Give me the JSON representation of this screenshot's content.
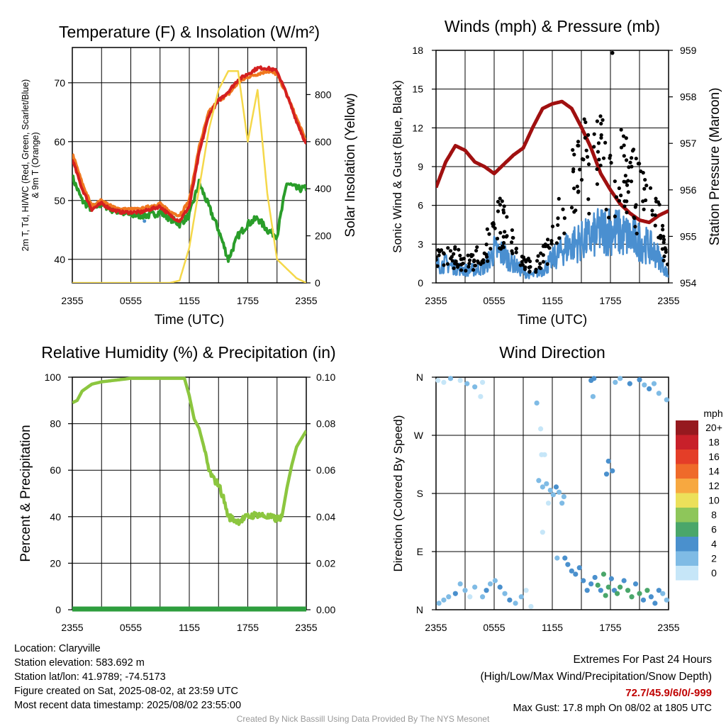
{
  "chart_data": [
    {
      "type": "line",
      "title": "Temperature (F) & Insolation (W/m²)",
      "xlabel": "Time (UTC)",
      "ylabel": "2m T, Td, HI/WC (Red, Green, Scarlet/Blue) & 9m T (Orange)",
      "y2label": "Solar Insolation (Yellow)",
      "x_ticks": [
        "2355",
        "0555",
        "1155",
        "1755",
        "2355"
      ],
      "y_ticks": [
        "40",
        "50",
        "60",
        "70"
      ],
      "y2_ticks": [
        "0",
        "200",
        "400",
        "600",
        "800"
      ],
      "ylim": [
        36,
        76
      ],
      "y2lim": [
        0,
        1000
      ],
      "grid": true,
      "x_hours": [
        0,
        1,
        2,
        3,
        4,
        5,
        6,
        7,
        8,
        9,
        10,
        11,
        12,
        13,
        14,
        15,
        16,
        17,
        18,
        19,
        20,
        21,
        22,
        23,
        24
      ],
      "series": [
        {
          "color": "#2a9d2a",
          "axis": "left",
          "values": [
            54,
            50,
            48.5,
            49.5,
            48.5,
            48,
            47.5,
            47.5,
            47.5,
            48,
            47,
            46,
            47.5,
            53,
            49,
            45,
            40,
            44,
            46,
            47,
            45,
            44,
            53,
            52,
            52
          ]
        },
        {
          "color": "#f07820",
          "axis": "left",
          "values": [
            58,
            53,
            49,
            50,
            49,
            48.5,
            48.5,
            48.5,
            49,
            49.5,
            48,
            47.5,
            50,
            59,
            65,
            67,
            68,
            70,
            71,
            71.5,
            72,
            71.5,
            68,
            64,
            60
          ]
        },
        {
          "color": "#d42020",
          "axis": "left",
          "values": [
            57,
            52,
            48.5,
            49.5,
            48.5,
            48,
            48,
            48,
            48.5,
            49,
            47.5,
            46.5,
            49,
            58,
            64.5,
            67,
            68.5,
            70.5,
            71.5,
            72.5,
            72.5,
            72,
            68,
            63.5,
            59.5
          ]
        },
        {
          "color": "#f5d84a",
          "axis": "right",
          "values": [
            0,
            0,
            0,
            0,
            0,
            0,
            0,
            0,
            0,
            0,
            0,
            10,
            150,
            400,
            650,
            820,
            900,
            900,
            600,
            820,
            380,
            100,
            60,
            20,
            0
          ]
        }
      ],
      "blue_points": [
        [
          7.4,
          46.5
        ]
      ]
    },
    {
      "type": "line",
      "title": "Winds (mph) & Pressure (mb)",
      "xlabel": "Time (UTC)",
      "ylabel": "Sonic Wind & Gust (Blue, Black)",
      "y2label": "Station Pressure (Maroon)",
      "x_ticks": [
        "2355",
        "0555",
        "1155",
        "1755",
        "2355"
      ],
      "y_ticks": [
        "0",
        "3",
        "6",
        "9",
        "12",
        "15",
        "18"
      ],
      "y2_ticks": [
        "954",
        "955",
        "956",
        "957",
        "958",
        "959"
      ],
      "ylim": [
        0,
        18
      ],
      "y2lim": [
        954,
        959
      ],
      "grid": true,
      "pressure": {
        "color": "#a01010",
        "x_hours": [
          0,
          1,
          2,
          3,
          4,
          5,
          6,
          7,
          8,
          9,
          10,
          11,
          12,
          13,
          14,
          15,
          16,
          17,
          18,
          19,
          20,
          21,
          22,
          23,
          24
        ],
        "values": [
          956.05,
          956.6,
          956.95,
          956.85,
          956.6,
          956.5,
          956.35,
          956.55,
          956.75,
          956.9,
          957.35,
          957.75,
          957.85,
          957.9,
          957.75,
          957.35,
          956.9,
          956.35,
          956.0,
          955.7,
          955.5,
          955.35,
          955.3,
          955.45,
          955.55
        ]
      },
      "wind_mean": {
        "color": "#4a8fd0",
        "x_hours": [
          0,
          1,
          2,
          3,
          4,
          5,
          6,
          7,
          8,
          9,
          10,
          11,
          12,
          13,
          14,
          15,
          16,
          17,
          18,
          19,
          20,
          21,
          22,
          23,
          24
        ],
        "values": [
          1.3,
          1.5,
          1.2,
          1.0,
          1.0,
          1.2,
          2.5,
          2.2,
          1.5,
          0.8,
          0.6,
          1.0,
          1.8,
          2.5,
          3.0,
          3.2,
          3.5,
          4.0,
          4.2,
          3.8,
          3.5,
          3.2,
          2.8,
          2.0,
          0.5
        ]
      },
      "gusts": {
        "color": "#000000",
        "x_hours": [
          0,
          1,
          2,
          3,
          4,
          5,
          6,
          7,
          8,
          9,
          10,
          11,
          12,
          13,
          14,
          15,
          16,
          17,
          18,
          19,
          20,
          21,
          22,
          23,
          24
        ],
        "values": [
          1.8,
          2.2,
          2.0,
          1.5,
          1.8,
          2.5,
          4.0,
          5.0,
          3.0,
          1.5,
          1.2,
          2.0,
          3.0,
          5.5,
          7.5,
          8.5,
          9.5,
          9.0,
          8.0,
          8.5,
          8.0,
          6.5,
          6.0,
          4.5,
          0.8
        ],
        "max": {
          "x_hours": 18.2,
          "value": 17.8
        }
      }
    },
    {
      "type": "line",
      "title": "Relative Humidity (%) & Precipitation (in)",
      "xlabel": "",
      "ylabel": "Percent & Precipitation",
      "x_ticks": [
        "2355",
        "0555",
        "1155",
        "1755",
        "2355"
      ],
      "y_ticks": [
        "0",
        "20",
        "40",
        "60",
        "80",
        "100"
      ],
      "y2_ticks": [
        "0.00",
        "0.02",
        "0.04",
        "0.06",
        "0.08",
        "0.10"
      ],
      "ylim": [
        0,
        100
      ],
      "y2lim": [
        0,
        0.1
      ],
      "grid": true,
      "series": [
        {
          "color": "#8cc63f",
          "axis": "left",
          "x_hours": [
            0,
            0.5,
            1,
            2,
            3,
            4,
            5,
            6,
            7,
            8,
            9,
            10,
            11,
            11.5,
            12,
            12.5,
            13,
            13.5,
            14,
            14.5,
            15,
            15.5,
            16,
            17,
            18,
            19,
            20,
            21,
            21.5,
            22,
            22.5,
            23,
            24
          ],
          "values": [
            89,
            90,
            94,
            97,
            98,
            98.5,
            99,
            99.5,
            99.5,
            99.5,
            99.5,
            99.5,
            99.5,
            99.5,
            92,
            82,
            78,
            70,
            60,
            56,
            54,
            48,
            40,
            38,
            40,
            41,
            40,
            39,
            40,
            52,
            62,
            70,
            77
          ]
        },
        {
          "color": "#2e9e3e",
          "axis": "right",
          "x_hours": [
            0,
            24
          ],
          "values": [
            0,
            0
          ]
        }
      ]
    },
    {
      "type": "scatter",
      "title": "Wind Direction",
      "ylabel": "Direction (Colored By Speed)",
      "x_ticks": [
        "2355",
        "0555",
        "1155",
        "1755",
        "2355"
      ],
      "y_ticks": [
        "N",
        "E",
        "S",
        "W",
        "N"
      ],
      "ylim": [
        0,
        360
      ],
      "grid": true,
      "points": [
        [
          0.2,
          355,
          1
        ],
        [
          0.8,
          352,
          1
        ],
        [
          1.5,
          358,
          2
        ],
        [
          2.5,
          355,
          1
        ],
        [
          3.2,
          350,
          2
        ],
        [
          4.0,
          345,
          2
        ],
        [
          4.8,
          352,
          1
        ],
        [
          4.6,
          330,
          1
        ],
        [
          0.3,
          10,
          3
        ],
        [
          0.8,
          15,
          2
        ],
        [
          1.3,
          20,
          2
        ],
        [
          2.0,
          25,
          4
        ],
        [
          2.5,
          40,
          3
        ],
        [
          3.0,
          30,
          2
        ],
        [
          3.5,
          20,
          1
        ],
        [
          4.0,
          35,
          3
        ],
        [
          4.8,
          20,
          2
        ],
        [
          5.2,
          30,
          4
        ],
        [
          5.6,
          40,
          3
        ],
        [
          6.1,
          45,
          3
        ],
        [
          6.6,
          35,
          4
        ],
        [
          7.1,
          25,
          3
        ],
        [
          7.6,
          15,
          4
        ],
        [
          8.2,
          10,
          3
        ],
        [
          8.8,
          20,
          2
        ],
        [
          9.3,
          30,
          1
        ],
        [
          9.8,
          5,
          1
        ],
        [
          10.4,
          320,
          2
        ],
        [
          10.8,
          280,
          1
        ],
        [
          11.2,
          240,
          1
        ],
        [
          10.9,
          240,
          1
        ],
        [
          10.6,
          200,
          2
        ],
        [
          11.0,
          190,
          3
        ],
        [
          11.4,
          195,
          2
        ],
        [
          11.8,
          185,
          3
        ],
        [
          12.1,
          178,
          2
        ],
        [
          12.4,
          190,
          4
        ],
        [
          12.7,
          182,
          3
        ],
        [
          13.0,
          165,
          3
        ],
        [
          13.2,
          175,
          2
        ],
        [
          11.6,
          165,
          1
        ],
        [
          11.0,
          120,
          1
        ],
        [
          12.5,
          80,
          2
        ],
        [
          13.3,
          80,
          4
        ],
        [
          13.6,
          70,
          5
        ],
        [
          14.0,
          60,
          4
        ],
        [
          14.4,
          55,
          5
        ],
        [
          14.8,
          65,
          4
        ],
        [
          15.2,
          45,
          5
        ],
        [
          15.6,
          30,
          4
        ],
        [
          16.0,
          40,
          5
        ],
        [
          16.4,
          50,
          5
        ],
        [
          16.7,
          38,
          6
        ],
        [
          17.0,
          30,
          5
        ],
        [
          17.3,
          55,
          6
        ],
        [
          17.5,
          22,
          7
        ],
        [
          17.8,
          35,
          6
        ],
        [
          18.1,
          48,
          5
        ],
        [
          18.4,
          30,
          5
        ],
        [
          18.7,
          25,
          6
        ],
        [
          19.0,
          35,
          7
        ],
        [
          19.4,
          45,
          5
        ],
        [
          19.8,
          30,
          6
        ],
        [
          20.2,
          20,
          6
        ],
        [
          20.6,
          40,
          5
        ],
        [
          21.0,
          25,
          6
        ],
        [
          21.4,
          15,
          5
        ],
        [
          21.8,
          30,
          6
        ],
        [
          22.2,
          20,
          5
        ],
        [
          22.6,
          10,
          4
        ],
        [
          23.0,
          30,
          4
        ],
        [
          23.4,
          25,
          3
        ],
        [
          23.8,
          15,
          2
        ],
        [
          16.0,
          355,
          4
        ],
        [
          16.3,
          358,
          5
        ],
        [
          18.5,
          352,
          2
        ],
        [
          19.0,
          358,
          3
        ],
        [
          20.0,
          350,
          4
        ],
        [
          21.0,
          356,
          5
        ],
        [
          21.5,
          348,
          2
        ],
        [
          22.0,
          342,
          4
        ],
        [
          22.5,
          350,
          3
        ],
        [
          23.0,
          335,
          3
        ],
        [
          23.8,
          325,
          2
        ],
        [
          17.8,
          230,
          4
        ],
        [
          17.6,
          210,
          5
        ],
        [
          18.2,
          215,
          4
        ],
        [
          16.2,
          330,
          2
        ]
      ],
      "speed_colors": [
        "#c6e6f8",
        "#7fbbe5",
        "#4a90cd",
        "#4aa66a",
        "#8ec65a",
        "#ece05a",
        "#f7a840",
        "#ef6a2a",
        "#e43e28",
        "#c8202a",
        "#96191f"
      ],
      "legend": {
        "unit": "mph",
        "labels": [
          "20+",
          "18",
          "16",
          "14",
          "12",
          "10",
          "8",
          "6",
          "4",
          "2",
          "0"
        ]
      }
    }
  ],
  "info": {
    "location": "Location: Claryville",
    "elevation": "Station elevation: 583.692 m",
    "latlon": "Station lat/lon: 41.9789; -74.5173",
    "created": "Figure created on Sat, 2025-08-02, at 23:59 UTC",
    "recent": "Most recent data timestamp: 2025/08/02 23:55:00"
  },
  "extremes": {
    "title": "Extremes For Past 24 Hours",
    "subtitle": "(High/Low/Max Wind/Precipitation/Snow Depth)",
    "values": "72.7/45.9/6/0/-999",
    "max_gust": "Max Gust: 17.8 mph On 08/02 at 1805 UTC"
  },
  "credit": "Created By Nick Bassill Using Data Provided By The NYS Mesonet"
}
